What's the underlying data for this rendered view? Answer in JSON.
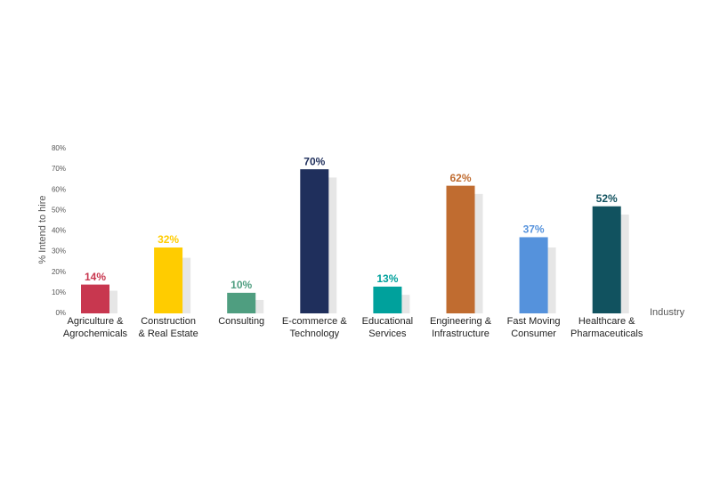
{
  "chart_data": {
    "type": "bar",
    "y_label": "% Intend to hire",
    "x_label": "Industry",
    "categories": [
      [
        "Agriculture &",
        "Agrochemicals"
      ],
      [
        "Construction",
        "& Real Estate"
      ],
      [
        "Consulting"
      ],
      [
        "E-commerce &",
        "Technology"
      ],
      [
        "Educational",
        "Services"
      ],
      [
        "Engineering &",
        "Infrastructure"
      ],
      [
        "Fast Moving",
        "Consumer"
      ],
      [
        "Healthcare &",
        "Pharmaceuticals"
      ]
    ],
    "series": [
      {
        "colors": [
          "#c8374f",
          "#ffcc00",
          "#4f9e80",
          "#1f2f5c",
          "#00a19c",
          "#c06c30",
          "#5592dc",
          "#11525f"
        ],
        "values": [
          14,
          32,
          10,
          70,
          13,
          62,
          37,
          52
        ],
        "value_labels": [
          "14%",
          "32%",
          "10%",
          "70%",
          "13%",
          "62%",
          "37%",
          "52%"
        ]
      },
      {
        "color": "#e6e6e6",
        "values": [
          11,
          27,
          6.5,
          66,
          9,
          58,
          32,
          48
        ]
      }
    ],
    "ylim": [
      0,
      80
    ],
    "yticks": [
      {
        "value": 0,
        "label": "0%"
      },
      {
        "value": 10,
        "label": "10%"
      },
      {
        "value": 20,
        "label": "20%"
      },
      {
        "value": 30,
        "label": "30%"
      },
      {
        "value": 40,
        "label": "40%"
      },
      {
        "value": 50,
        "label": "50%"
      },
      {
        "value": 60,
        "label": "60%"
      },
      {
        "value": 70,
        "label": "70%"
      },
      {
        "value": 80,
        "label": "80%"
      }
    ],
    "grid": false
  }
}
